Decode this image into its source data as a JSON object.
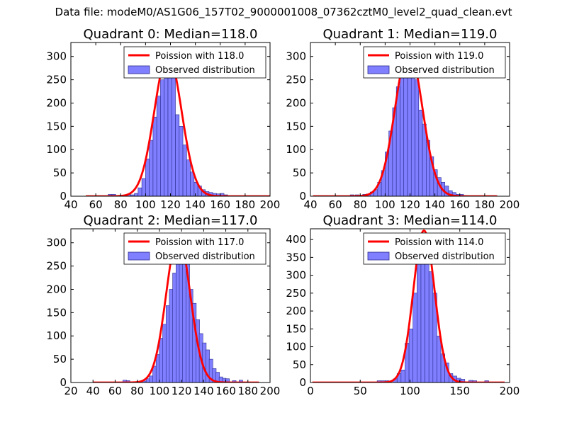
{
  "suptitle": "Data file: modeM0/AS1G06_157T02_9000001008_07362cztM0_level2_quad_clean.evt",
  "colors": {
    "bars": "#7f7fff",
    "bar_edge": "#2b2b8f",
    "poisson_line": "#ff0000",
    "frame": "#000000"
  },
  "legend": {
    "line_prefix": "Poission with ",
    "bars_label": "Observed distribution"
  },
  "chart_data": [
    {
      "type": "bar",
      "title": "Quadrant 0: Median=118.0",
      "median": 118.0,
      "poisson_label": "Poission with 118.0",
      "legend_placement": "top-right",
      "xlim": [
        40,
        200
      ],
      "ylim": [
        0,
        330
      ],
      "xticks": [
        40,
        60,
        80,
        100,
        120,
        140,
        160,
        180,
        200
      ],
      "yticks": [
        0,
        50,
        100,
        150,
        200,
        250,
        300
      ],
      "bin_width": 3,
      "bins": [
        [
          70,
          4
        ],
        [
          73,
          4
        ],
        [
          79,
          2
        ],
        [
          82,
          2
        ],
        [
          85,
          4
        ],
        [
          88,
          3
        ],
        [
          91,
          6
        ],
        [
          94,
          18
        ],
        [
          97,
          38
        ],
        [
          100,
          80
        ],
        [
          103,
          120
        ],
        [
          106,
          170
        ],
        [
          109,
          215
        ],
        [
          112,
          250
        ],
        [
          115,
          290
        ],
        [
          118,
          270
        ],
        [
          121,
          270
        ],
        [
          124,
          175
        ],
        [
          127,
          150
        ],
        [
          130,
          110
        ],
        [
          133,
          78
        ],
        [
          136,
          52
        ],
        [
          139,
          30
        ],
        [
          142,
          22
        ],
        [
          145,
          14
        ],
        [
          148,
          10
        ],
        [
          151,
          8
        ],
        [
          154,
          6
        ],
        [
          157,
          5
        ],
        [
          160,
          6
        ],
        [
          163,
          3
        ]
      ],
      "poisson_x": [
        52,
        200
      ]
    },
    {
      "type": "bar",
      "title": "Quadrant 1: Median=119.0",
      "median": 119.0,
      "poisson_label": "Poission with 119.0",
      "legend_placement": "top-right",
      "xlim": [
        40,
        200
      ],
      "ylim": [
        0,
        330
      ],
      "xticks": [
        40,
        60,
        80,
        100,
        120,
        140,
        160,
        180,
        200
      ],
      "yticks": [
        0,
        50,
        100,
        150,
        200,
        250,
        300
      ],
      "bin_width": 3,
      "bins": [
        [
          72,
          3
        ],
        [
          76,
          3
        ],
        [
          82,
          4
        ],
        [
          85,
          5
        ],
        [
          88,
          9
        ],
        [
          91,
          14
        ],
        [
          94,
          30
        ],
        [
          97,
          55
        ],
        [
          100,
          95
        ],
        [
          103,
          140
        ],
        [
          106,
          190
        ],
        [
          109,
          235
        ],
        [
          112,
          270
        ],
        [
          115,
          290
        ],
        [
          118,
          300
        ],
        [
          121,
          280
        ],
        [
          124,
          250
        ],
        [
          127,
          185
        ],
        [
          130,
          155
        ],
        [
          133,
          120
        ],
        [
          136,
          85
        ],
        [
          139,
          57
        ],
        [
          142,
          40
        ],
        [
          145,
          30
        ],
        [
          148,
          22
        ],
        [
          151,
          12
        ],
        [
          154,
          8
        ],
        [
          157,
          4
        ],
        [
          160,
          4
        ]
      ],
      "poisson_x": [
        42,
        190
      ]
    },
    {
      "type": "bar",
      "title": "Quadrant 2: Median=117.0",
      "median": 117.0,
      "poisson_label": "Poission with 117.0",
      "legend_placement": "top-right",
      "xlim": [
        20,
        200
      ],
      "ylim": [
        0,
        330
      ],
      "xticks": [
        20,
        40,
        60,
        80,
        100,
        120,
        140,
        160,
        180,
        200
      ],
      "yticks": [
        0,
        50,
        100,
        150,
        200,
        250,
        300
      ],
      "bin_width": 3.3,
      "bins": [
        [
          67,
          5
        ],
        [
          70,
          4
        ],
        [
          85,
          3
        ],
        [
          88,
          8
        ],
        [
          91,
          14
        ],
        [
          94,
          35
        ],
        [
          97,
          60
        ],
        [
          100,
          95
        ],
        [
          103,
          125
        ],
        [
          106,
          165
        ],
        [
          109,
          200
        ],
        [
          112,
          235
        ],
        [
          115,
          265
        ],
        [
          118,
          300
        ],
        [
          121,
          295
        ],
        [
          124,
          255
        ],
        [
          127,
          200
        ],
        [
          130,
          170
        ],
        [
          133,
          135
        ],
        [
          136,
          105
        ],
        [
          139,
          85
        ],
        [
          142,
          70
        ],
        [
          145,
          50
        ],
        [
          148,
          30
        ],
        [
          151,
          22
        ],
        [
          154,
          12
        ],
        [
          157,
          9
        ],
        [
          160,
          8
        ],
        [
          166,
          4
        ],
        [
          172,
          5
        ]
      ],
      "poisson_x": [
        40,
        190
      ]
    },
    {
      "type": "bar",
      "title": "Quadrant 3: Median=114.0",
      "median": 114.0,
      "poisson_label": "Poission with 114.0",
      "legend_placement": "top-right",
      "xlim": [
        0,
        200
      ],
      "ylim": [
        0,
        430
      ],
      "xticks": [
        0,
        50,
        100,
        150,
        200
      ],
      "yticks": [
        0,
        50,
        100,
        150,
        200,
        250,
        300,
        350,
        400
      ],
      "bin_width": 4,
      "bins": [
        [
          67,
          5
        ],
        [
          71,
          5
        ],
        [
          75,
          5
        ],
        [
          83,
          10
        ],
        [
          87,
          25
        ],
        [
          91,
          35
        ],
        [
          95,
          110
        ],
        [
          99,
          150
        ],
        [
          103,
          250
        ],
        [
          107,
          340
        ],
        [
          111,
          405
        ],
        [
          115,
          385
        ],
        [
          119,
          310
        ],
        [
          123,
          250
        ],
        [
          127,
          130
        ],
        [
          131,
          80
        ],
        [
          135,
          55
        ],
        [
          139,
          25
        ],
        [
          143,
          18
        ],
        [
          147,
          12
        ],
        [
          151,
          9
        ],
        [
          159,
          6
        ],
        [
          163,
          5
        ],
        [
          175,
          5
        ]
      ],
      "poisson_x": [
        2,
        195
      ]
    }
  ]
}
